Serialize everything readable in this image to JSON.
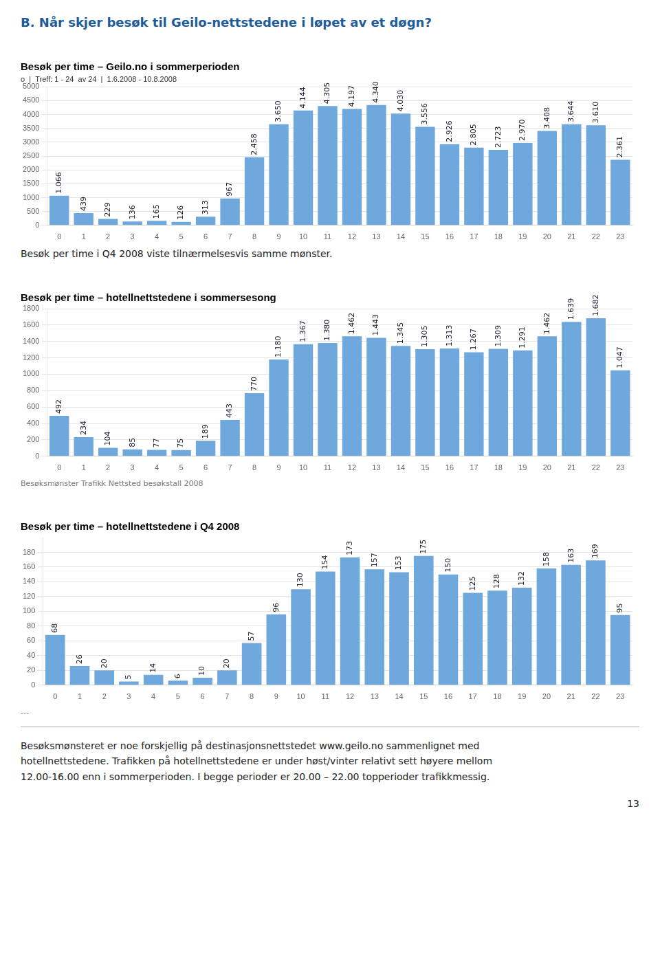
{
  "title": "B. Når skjer besøk til Geilo-nettstedene i løpet av et døgn?",
  "chart_data": [
    {
      "type": "bar",
      "title": "Besøk per time – Geilo.no i sommerperioden",
      "subtitle": "o  |  Treff: 1 - 24  av 24  |  1.6.2008 - 10.8.2008",
      "categories": [
        0,
        1,
        2,
        3,
        4,
        5,
        6,
        7,
        8,
        9,
        10,
        11,
        12,
        13,
        14,
        15,
        16,
        17,
        18,
        19,
        20,
        21,
        22,
        23
      ],
      "values": [
        1066,
        439,
        229,
        136,
        165,
        126,
        313,
        967,
        2458,
        3650,
        4144,
        4305,
        4197,
        4340,
        4030,
        3556,
        2926,
        2805,
        2723,
        2970,
        3408,
        3644,
        3610,
        2361
      ],
      "value_labels": [
        "1.066",
        "439",
        "229",
        "136",
        "165",
        "126",
        "313",
        "967",
        "2.458",
        "3.650",
        "4.144",
        "4.305",
        "4.197",
        "4.340",
        "4.030",
        "3.556",
        "2.926",
        "2.805",
        "2.723",
        "2.970",
        "3.408",
        "3.644",
        "3.610",
        "2.361"
      ],
      "color": "#6fa8dc",
      "ylim": [
        0,
        5000
      ],
      "yticks": [
        0,
        500,
        1000,
        1500,
        2000,
        2500,
        3000,
        3500,
        4000,
        4500,
        5000
      ],
      "grid": true,
      "data_labels": true,
      "annotations": [
        "Besøk per time i Q4 2008 viste tilnærmelsesvis samme mønster."
      ]
    },
    {
      "type": "bar",
      "title": "Besøk per time – hotellnettstedene i sommersesong",
      "categories": [
        0,
        1,
        2,
        3,
        4,
        5,
        6,
        7,
        8,
        9,
        10,
        11,
        12,
        13,
        14,
        15,
        16,
        17,
        18,
        19,
        20,
        21,
        22,
        23
      ],
      "values": [
        492,
        234,
        104,
        85,
        77,
        75,
        189,
        443,
        770,
        1180,
        1367,
        1380,
        1462,
        1443,
        1345,
        1305,
        1313,
        1267,
        1309,
        1291,
        1462,
        1639,
        1682,
        1047
      ],
      "value_labels": [
        "492",
        "234",
        "104",
        "85",
        "77",
        "75",
        "189",
        "443",
        "770",
        "1.180",
        "1.367",
        "1.380",
        "1.462",
        "1.443",
        "1.345",
        "1.305",
        "1.313",
        "1.267",
        "1.309",
        "1.291",
        "1.462",
        "1.639",
        "1.682",
        "1.047"
      ],
      "color": "#6fa8dc",
      "ylim": [
        0,
        1800
      ],
      "yticks": [
        0,
        200,
        400,
        600,
        800,
        1000,
        1200,
        1400,
        1600,
        1800
      ],
      "grid": true,
      "data_labels": true,
      "annotations": [
        "Besøksmønster Trafikk Nettsted besøkstall 2008"
      ]
    },
    {
      "type": "bar",
      "title": "Besøk per time – hotellnettstedene i Q4 2008",
      "categories": [
        0,
        1,
        2,
        3,
        4,
        5,
        6,
        7,
        8,
        9,
        10,
        11,
        12,
        13,
        14,
        15,
        16,
        17,
        18,
        19,
        20,
        21,
        22,
        23
      ],
      "values": [
        68,
        26,
        20,
        5,
        14,
        6,
        10,
        20,
        57,
        96,
        130,
        154,
        173,
        157,
        153,
        175,
        150,
        125,
        128,
        132,
        158,
        163,
        169,
        95
      ],
      "color": "#6fa8dc",
      "ylim": [
        0,
        200
      ],
      "yticks": [
        0,
        20,
        40,
        60,
        80,
        100,
        120,
        140,
        160,
        180
      ],
      "grid": true,
      "data_labels": true,
      "annotations": [
        "---"
      ]
    }
  ],
  "annotations": [
    "Besøksmønsteret er noe forskjellig på destinasjonsnettstedet www.geilo.no sammenlignet med\nhotellnettstedene.  Trafikken på hotellnettstedene er under høst/vinter relativt sett høyere mellom\n12.00-16.00 enn i sommerperioden.  I begge perioder er 20.00 – 22.00 topperioder trafikkmessig.",
    "13"
  ]
}
